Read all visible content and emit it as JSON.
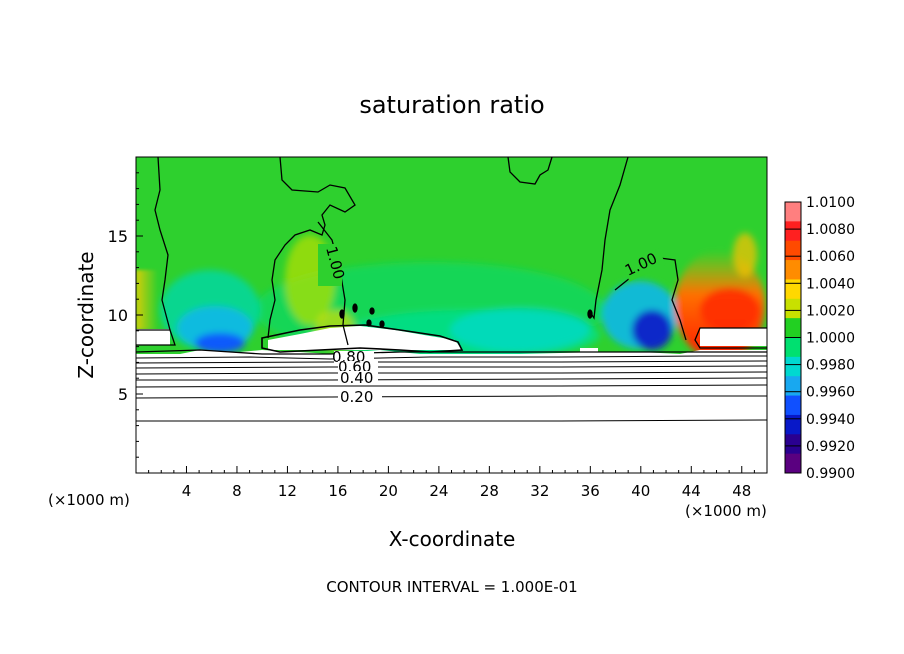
{
  "chart_data": {
    "type": "heatmap",
    "title": "saturation ratio",
    "xlabel": "X-coordinate",
    "ylabel": "Z-coordinate",
    "x_unit_left": "(×1000 m)",
    "x_unit_right": "(×1000 m)",
    "xlim": [
      0,
      50
    ],
    "ylim": [
      0,
      20
    ],
    "x_ticks": [
      "4",
      "8",
      "12",
      "16",
      "20",
      "24",
      "28",
      "32",
      "36",
      "40",
      "44",
      "48"
    ],
    "y_ticks": [
      "5",
      "10",
      "15"
    ],
    "footer": "CONTOUR INTERVAL = 1.000E-01",
    "colorbar": {
      "labels": [
        "1.0100",
        "1.0080",
        "1.0060",
        "1.0040",
        "1.0020",
        "1.0000",
        "0.9980",
        "0.9960",
        "0.9940",
        "0.9920",
        "0.9900"
      ],
      "colors": [
        "#ff7f7f",
        "#ff2020",
        "#ff4a00",
        "#ff8c00",
        "#ffd800",
        "#c8e000",
        "#22d022",
        "#00e070",
        "#00d8d0",
        "#18a8f0",
        "#1050ff",
        "#0818c8",
        "#2a0090",
        "#5a0080"
      ],
      "vmin": 0.99,
      "vmax": 1.01
    },
    "contour_labels": [
      "1.00",
      "1.00",
      "0.80",
      "0.60",
      "0.40",
      "0.20"
    ],
    "contour_interval": 0.1
  }
}
